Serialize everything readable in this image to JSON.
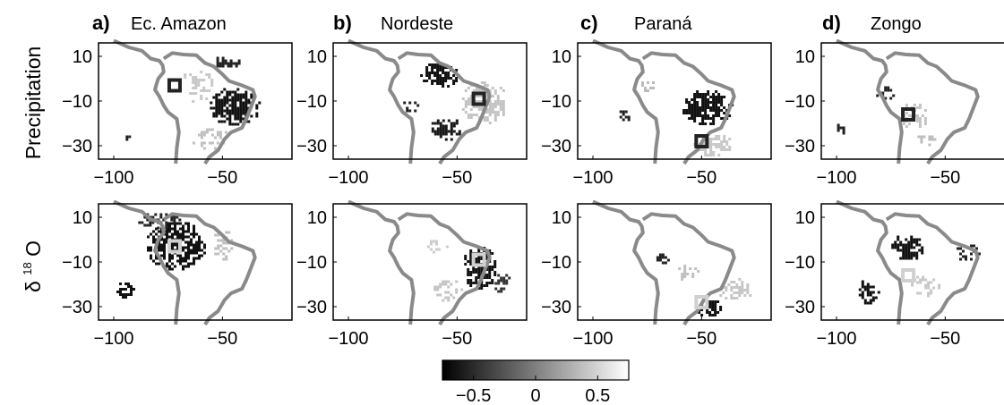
{
  "chart_data": {
    "type": "heatmap",
    "colormap": {
      "low": "#000000",
      "high": "#ffffff",
      "name": "gray"
    },
    "row_labels": {
      "precipitation": "Precipitation",
      "delta_symbol": "δ",
      "delta_superscript": "18",
      "delta_element": "O"
    },
    "xticks": [
      "−100",
      "−50"
    ],
    "yticks": [
      "10",
      "−10",
      "−30"
    ],
    "xlim": [
      -107,
      -18
    ],
    "ylim": [
      -36,
      16
    ],
    "panels": [
      {
        "letter": "a)",
        "name": "Ec. Amazon",
        "site": {
          "lon": -72,
          "lat": -3
        }
      },
      {
        "letter": "b)",
        "name": "Nordeste",
        "site": {
          "lon": -40,
          "lat": -9
        }
      },
      {
        "letter": "c)",
        "name": "Paraná",
        "site": {
          "lon": -50,
          "lat": -28
        }
      },
      {
        "letter": "d)",
        "name": "Zongo",
        "site": {
          "lon": -67,
          "lat": -16
        }
      }
    ],
    "colorbar": {
      "ticks": [
        "−0.5",
        "0",
        "0.5"
      ],
      "tick_values": [
        -0.5,
        0,
        0.5
      ],
      "range": [
        -0.75,
        0.75
      ]
    },
    "site_marker_colors": {
      "precipitation": "#222222",
      "d18o": "#d0d0d0"
    }
  }
}
